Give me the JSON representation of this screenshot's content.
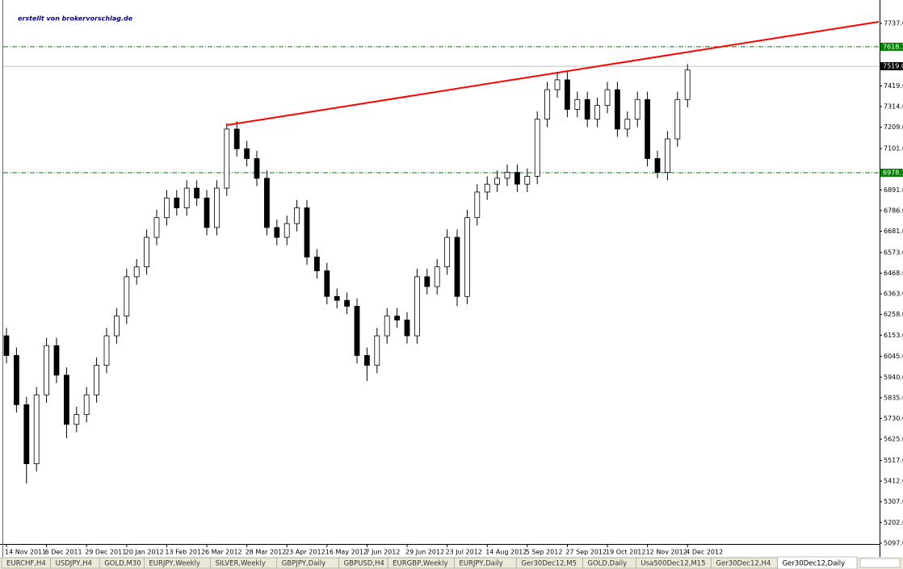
{
  "chart_data": {
    "type": "candlestick",
    "watermark": "erstellt von brokervorschlag.de",
    "categories": [
      "14 Nov 2011",
      null,
      null,
      null,
      "6 Dec 2011",
      null,
      null,
      null,
      "29 Dec 2011",
      null,
      null,
      null,
      "20 Jan 2012",
      null,
      null,
      null,
      "13 Feb 2012",
      null,
      null,
      null,
      "6 Mar 2012",
      null,
      null,
      null,
      "28 Mar 2012",
      null,
      null,
      null,
      "23 Apr 2012",
      null,
      null,
      null,
      "16 May 2012",
      null,
      null,
      null,
      "7 Jun 2012",
      null,
      null,
      null,
      "29 Jun 2012",
      null,
      null,
      null,
      "23 Jul 2012",
      null,
      null,
      null,
      "14 Aug 2012",
      null,
      null,
      null,
      "5 Sep 2012",
      null,
      null,
      null,
      "27 Sep 2012",
      null,
      null,
      null,
      "19 Oct 2012",
      null,
      null,
      null,
      "12 Nov 2012",
      null,
      null,
      null,
      "4 Dec 2012"
    ],
    "open": [
      6150,
      6050,
      5800,
      5500,
      5850,
      6100,
      5950,
      5700,
      5750,
      5850,
      6000,
      6150,
      6250,
      6450,
      6500,
      6650,
      6750,
      6850,
      6800,
      6900,
      6850,
      6700,
      6900,
      7200,
      7100,
      7050,
      6950,
      6700,
      6650,
      6720,
      6800,
      6550,
      6480,
      6350,
      6330,
      6300,
      6050,
      6000,
      6150,
      6250,
      6230,
      6150,
      6450,
      6400,
      6500,
      6650,
      6350,
      6750,
      6880,
      6920,
      6950,
      6980,
      6920,
      6960,
      7250,
      7400,
      7450,
      7300,
      7350,
      7250,
      7320,
      7400,
      7200,
      7250,
      7350,
      7050,
      6980,
      7150,
      7350
    ],
    "high": [
      6190,
      6090,
      5840,
      5890,
      6140,
      6140,
      5990,
      5790,
      5890,
      6040,
      6190,
      6290,
      6490,
      6540,
      6690,
      6790,
      6890,
      6890,
      6940,
      6940,
      6890,
      6940,
      7230,
      7240,
      7140,
      7090,
      6990,
      6740,
      6760,
      6840,
      6840,
      6590,
      6520,
      6390,
      6370,
      6340,
      6090,
      6190,
      6290,
      6290,
      6270,
      6490,
      6490,
      6540,
      6690,
      6690,
      6790,
      6920,
      6960,
      6990,
      7020,
      7020,
      7000,
      7290,
      7440,
      7490,
      7490,
      7390,
      7390,
      7360,
      7440,
      7440,
      7290,
      7390,
      7390,
      7090,
      7190,
      7390,
      7530
    ],
    "low": [
      6010,
      5760,
      5400,
      5460,
      5810,
      5910,
      5630,
      5660,
      5710,
      5810,
      5960,
      6110,
      6210,
      6410,
      6460,
      6610,
      6710,
      6760,
      6760,
      6810,
      6660,
      6660,
      6860,
      7060,
      7010,
      6910,
      6660,
      6610,
      6610,
      6680,
      6510,
      6440,
      6310,
      6290,
      6260,
      6010,
      5920,
      5960,
      6110,
      6190,
      6110,
      6110,
      6360,
      6360,
      6460,
      6300,
      6310,
      6710,
      6840,
      6880,
      6910,
      6880,
      6880,
      6920,
      7210,
      7360,
      7260,
      7260,
      7210,
      7210,
      7280,
      7160,
      7160,
      7210,
      7010,
      6950,
      6940,
      7110,
      7310
    ],
    "close": [
      6050,
      5800,
      5500,
      5850,
      6100,
      5950,
      5700,
      5750,
      5850,
      6000,
      6150,
      6250,
      6450,
      6500,
      6650,
      6750,
      6850,
      6800,
      6900,
      6850,
      6700,
      6900,
      7200,
      7100,
      7050,
      6950,
      6700,
      6650,
      6720,
      6800,
      6550,
      6480,
      6350,
      6330,
      6300,
      6050,
      6000,
      6150,
      6250,
      6230,
      6150,
      6450,
      6400,
      6500,
      6650,
      6350,
      6750,
      6880,
      6920,
      6950,
      6980,
      6920,
      6960,
      7250,
      7400,
      7450,
      7300,
      7350,
      7250,
      7320,
      7400,
      7200,
      7250,
      7350,
      7050,
      6980,
      7150,
      7350,
      7500
    ],
    "ylim": [
      5027,
      7835
    ],
    "yticks": [
      {
        "value": 7737,
        "label": "7737.0"
      },
      {
        "value": 7419,
        "label": "7419.0"
      },
      {
        "value": 7314,
        "label": "7314.0"
      },
      {
        "value": 7209,
        "label": "7209.0"
      },
      {
        "value": 7101,
        "label": "7101.0"
      },
      {
        "value": 6891,
        "label": "6891.0"
      },
      {
        "value": 6786,
        "label": "6786.0"
      },
      {
        "value": 6681,
        "label": "6681.0"
      },
      {
        "value": 6573,
        "label": "6573.0"
      },
      {
        "value": 6468,
        "label": "6468.0"
      },
      {
        "value": 6363,
        "label": "6363.0"
      },
      {
        "value": 6258,
        "label": "6258.0"
      },
      {
        "value": 6153,
        "label": "6153.0"
      },
      {
        "value": 6045,
        "label": "6045.0"
      },
      {
        "value": 5940,
        "label": "5940.0"
      },
      {
        "value": 5835,
        "label": "5835.0"
      },
      {
        "value": 5730,
        "label": "5730.0"
      },
      {
        "value": 5625,
        "label": "5625.0"
      },
      {
        "value": 5517,
        "label": "5517.0"
      },
      {
        "value": 5412,
        "label": "5412.0"
      },
      {
        "value": 5307,
        "label": "5307.0"
      },
      {
        "value": 5202,
        "label": "5202.0"
      },
      {
        "value": 5097,
        "label": "5097.0"
      }
    ],
    "levels": [
      {
        "value": 7618.1,
        "color": "#008000"
      },
      {
        "value": 6978.1,
        "color": "#008000"
      }
    ],
    "current_price": {
      "value": 7519,
      "label": "7519.0"
    },
    "trendline": {
      "x": [
        22,
        87.1
      ],
      "y": [
        7220,
        7745
      ],
      "color": "#ff0000"
    }
  },
  "tabs": [
    "EURCHF,H4",
    "USDJPY,H4",
    "GOLD,M30",
    "EURJPY,Weekly",
    "SILVER,Weekly",
    "GBPJPY,Daily",
    "GBPUSD,H4",
    "EURGBP,Weekly",
    "EURJPY,Daily",
    "Ger30Dec12,M5",
    "GOLD,Daily",
    "Usa500Dec12,M15",
    "Ger30Dec12,H4",
    "Ger30Dec12,Daily"
  ]
}
